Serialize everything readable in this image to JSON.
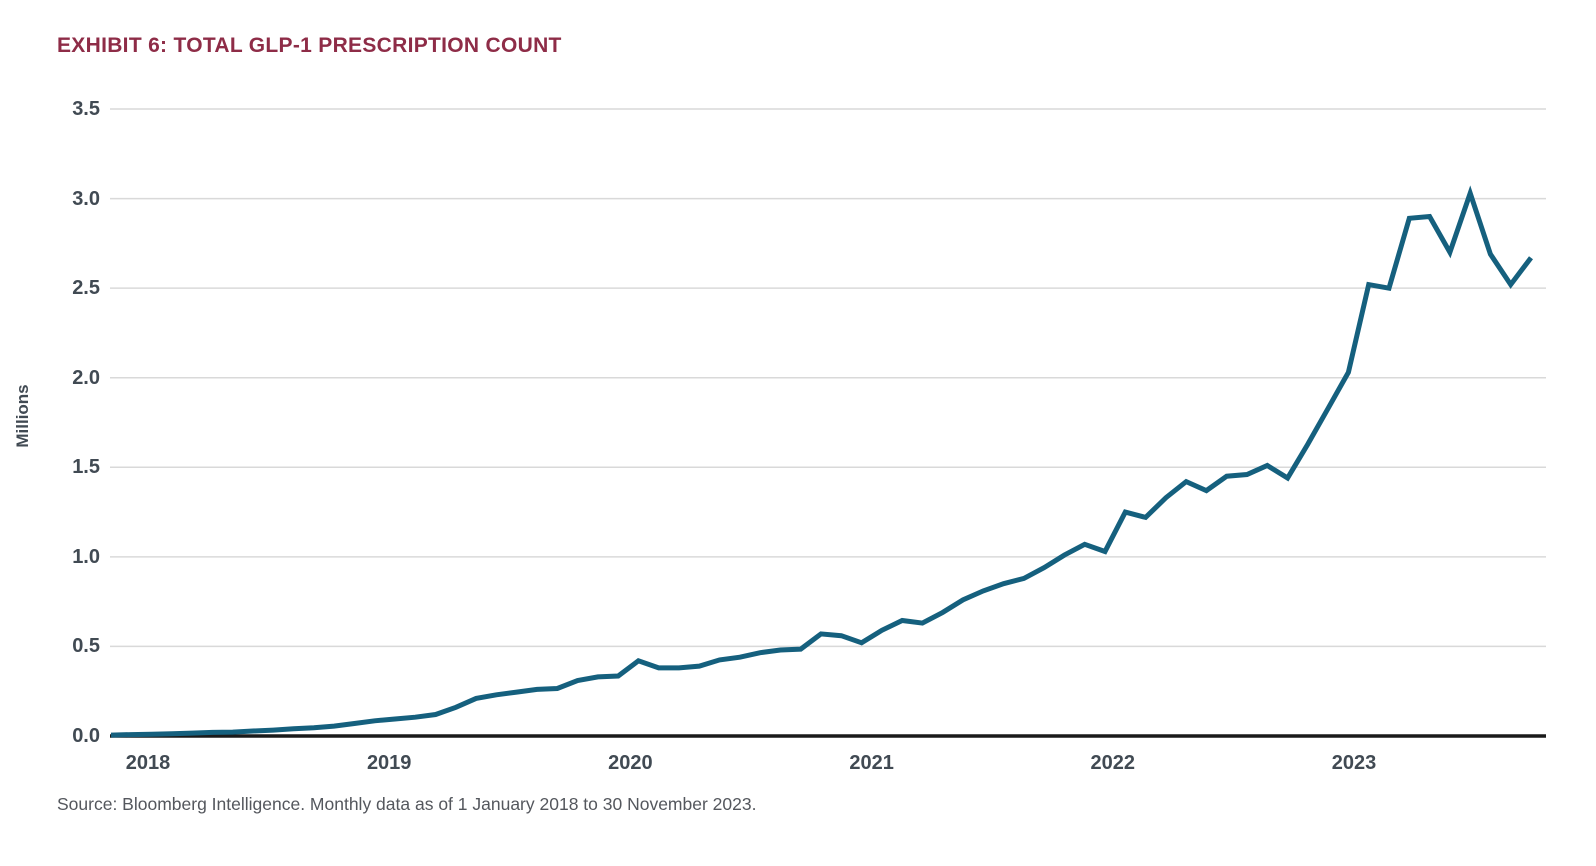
{
  "header": {
    "title": "EXHIBIT 6: TOTAL GLP-1 PRESCRIPTION COUNT"
  },
  "source": {
    "text": "Source: Bloomberg Intelligence. Monthly data as of 1 January 2018 to 30 November 2023."
  },
  "colors": {
    "title_text": "#8E2C47",
    "line": "#15607E",
    "grid": "#D9D9D9",
    "axis": "#1A1A1A",
    "tick_text": "#414A53",
    "source_text": "#54575D"
  },
  "chart_data": {
    "type": "line",
    "title": "EXHIBIT 6: TOTAL GLP-1 PRESCRIPTION COUNT",
    "xlabel": "",
    "ylabel": "Millions",
    "ylim": [
      0,
      3.5
    ],
    "y_ticks": [
      0.0,
      0.5,
      1.0,
      1.5,
      2.0,
      2.5,
      3.0,
      3.5
    ],
    "y_tick_labels": [
      "0.0",
      "0.5",
      "1.0",
      "1.5",
      "2.0",
      "2.5",
      "3.0",
      "3.5"
    ],
    "x_tick_labels": [
      "2018",
      "2019",
      "2020",
      "2021",
      "2022",
      "2023"
    ],
    "grid": "horizontal",
    "legend": "none",
    "frequency": "monthly",
    "period": "Jan 2018 - Nov 2023",
    "series": [
      {
        "name": "Total GLP-1 prescription count (millions)",
        "x": [
          "2018-01",
          "2018-02",
          "2018-03",
          "2018-04",
          "2018-05",
          "2018-06",
          "2018-07",
          "2018-08",
          "2018-09",
          "2018-10",
          "2018-11",
          "2018-12",
          "2019-01",
          "2019-02",
          "2019-03",
          "2019-04",
          "2019-05",
          "2019-06",
          "2019-07",
          "2019-08",
          "2019-09",
          "2019-10",
          "2019-11",
          "2019-12",
          "2020-01",
          "2020-02",
          "2020-03",
          "2020-04",
          "2020-05",
          "2020-06",
          "2020-07",
          "2020-08",
          "2020-09",
          "2020-10",
          "2020-11",
          "2020-12",
          "2021-01",
          "2021-02",
          "2021-03",
          "2021-04",
          "2021-05",
          "2021-06",
          "2021-07",
          "2021-08",
          "2021-09",
          "2021-10",
          "2021-11",
          "2021-12",
          "2022-01",
          "2022-02",
          "2022-03",
          "2022-04",
          "2022-05",
          "2022-06",
          "2022-07",
          "2022-08",
          "2022-09",
          "2022-10",
          "2022-11",
          "2022-12",
          "2023-01",
          "2023-02",
          "2023-03",
          "2023-04",
          "2023-05",
          "2023-06",
          "2023-07",
          "2023-08",
          "2023-09",
          "2023-10",
          "2023-11"
        ],
        "values": [
          0.005,
          0.008,
          0.01,
          0.013,
          0.016,
          0.02,
          0.022,
          0.028,
          0.033,
          0.04,
          0.046,
          0.055,
          0.07,
          0.085,
          0.095,
          0.105,
          0.12,
          0.16,
          0.21,
          0.23,
          0.245,
          0.26,
          0.265,
          0.31,
          0.33,
          0.335,
          0.42,
          0.38,
          0.38,
          0.39,
          0.425,
          0.44,
          0.465,
          0.48,
          0.485,
          0.57,
          0.56,
          0.52,
          0.59,
          0.645,
          0.63,
          0.69,
          0.76,
          0.81,
          0.85,
          0.88,
          0.94,
          1.01,
          1.07,
          1.03,
          1.25,
          1.22,
          1.33,
          1.42,
          1.37,
          1.45,
          1.46,
          1.51,
          1.44,
          1.63,
          1.83,
          2.03,
          2.52,
          2.5,
          2.89,
          2.9,
          2.7,
          3.03,
          2.69,
          2.52,
          2.67
        ]
      }
    ]
  }
}
